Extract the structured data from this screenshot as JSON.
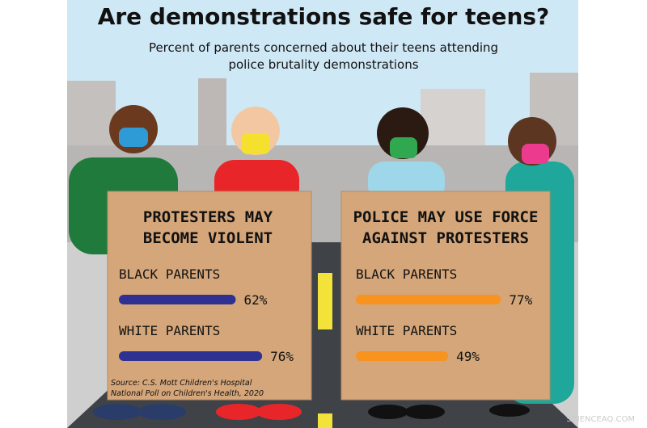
{
  "title": "Are demonstrations safe for teens?",
  "subtitle": [
    "Percent of parents concerned about their teens attending",
    "police brutality demonstrations"
  ],
  "source": [
    "Source: C.S. Mott Children's Hospital",
    "National Poll on Children's Health, 2020"
  ],
  "watermark": "SCIENCEAQ.COM",
  "chart_data": [
    {
      "type": "bar",
      "orientation": "horizontal",
      "title": [
        "PROTESTERS MAY",
        "BECOME VIOLENT"
      ],
      "categories": [
        "BLACK PARENTS",
        "WHITE PARENTS"
      ],
      "values": [
        62,
        76
      ],
      "value_labels": [
        "62%",
        "76%"
      ],
      "color": "#2e3192"
    },
    {
      "type": "bar",
      "orientation": "horizontal",
      "title": [
        "POLICE MAY USE FORCE",
        "AGAINST PROTESTERS"
      ],
      "categories": [
        "BLACK PARENTS",
        "WHITE PARENTS"
      ],
      "values": [
        77,
        49
      ],
      "value_labels": [
        "77%",
        "49%"
      ],
      "color": "#f7931e"
    }
  ]
}
